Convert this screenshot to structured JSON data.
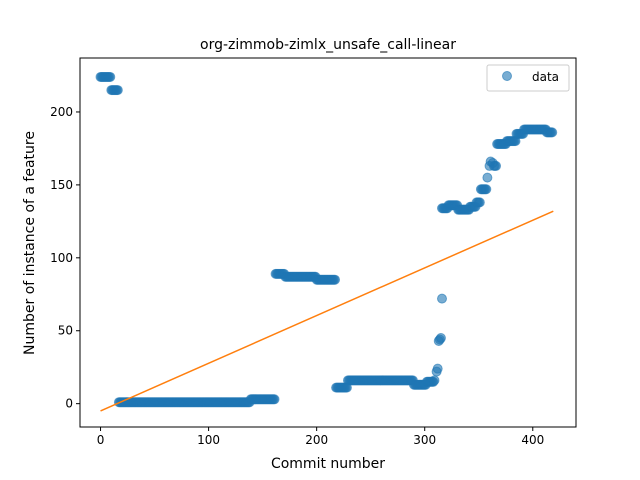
{
  "chart_data": {
    "type": "scatter",
    "title": "org-zimmob-zimlx_unsafe_call-linear",
    "xlabel": "Commit number",
    "ylabel": "Number of instance of a feature",
    "xlim": [
      -19,
      440
    ],
    "ylim": [
      -16,
      237
    ],
    "xticks": [
      0,
      100,
      200,
      300,
      400
    ],
    "yticks": [
      0,
      50,
      100,
      150,
      200
    ],
    "grid": false,
    "legend": {
      "position": "top-right",
      "entries": [
        "data"
      ]
    },
    "colors": {
      "data": "#1f77b4",
      "fit": "#ff7f0e"
    },
    "series": [
      {
        "name": "data",
        "kind": "scatter",
        "segments": [
          {
            "x_start": 0,
            "x_end": 10,
            "y": 224
          },
          {
            "x_start": 10,
            "x_end": 17,
            "y": 215
          },
          {
            "x_start": 17,
            "x_end": 139,
            "y": 1
          },
          {
            "x_start": 139,
            "x_end": 162,
            "y": 3
          },
          {
            "x_start": 162,
            "x_end": 171,
            "y": 89
          },
          {
            "x_start": 171,
            "x_end": 200,
            "y": 87
          },
          {
            "x_start": 200,
            "x_end": 218,
            "y": 85
          },
          {
            "x_start": 218,
            "x_end": 229,
            "y": 11
          },
          {
            "x_start": 229,
            "x_end": 290,
            "y": 16
          },
          {
            "x_start": 290,
            "x_end": 302,
            "y": 13
          },
          {
            "x_start": 302,
            "x_end": 309,
            "y": 15
          },
          {
            "x_start": 316,
            "x_end": 322,
            "y": 134
          },
          {
            "x_start": 322,
            "x_end": 331,
            "y": 136
          },
          {
            "x_start": 331,
            "x_end": 342,
            "y": 133
          },
          {
            "x_start": 342,
            "x_end": 348,
            "y": 135
          },
          {
            "x_start": 348,
            "x_end": 352,
            "y": 138
          },
          {
            "x_start": 352,
            "x_end": 358,
            "y": 147
          },
          {
            "x_start": 364,
            "x_end": 367,
            "y": 163
          },
          {
            "x_start": 367,
            "x_end": 376,
            "y": 178
          },
          {
            "x_start": 376,
            "x_end": 385,
            "y": 180
          },
          {
            "x_start": 385,
            "x_end": 392,
            "y": 185
          },
          {
            "x_start": 392,
            "x_end": 413,
            "y": 188
          },
          {
            "x_start": 413,
            "x_end": 419,
            "y": 186
          }
        ],
        "points": [
          {
            "x": 309,
            "y": 16
          },
          {
            "x": 311,
            "y": 22
          },
          {
            "x": 312,
            "y": 24
          },
          {
            "x": 313,
            "y": 43
          },
          {
            "x": 314,
            "y": 44
          },
          {
            "x": 315,
            "y": 45
          },
          {
            "x": 316,
            "y": 72
          },
          {
            "x": 358,
            "y": 155
          },
          {
            "x": 360,
            "y": 163
          },
          {
            "x": 361,
            "y": 166
          },
          {
            "x": 363,
            "y": 165
          }
        ]
      },
      {
        "name": "",
        "kind": "line",
        "x": [
          0,
          419
        ],
        "y": [
          -5,
          132
        ]
      }
    ]
  }
}
